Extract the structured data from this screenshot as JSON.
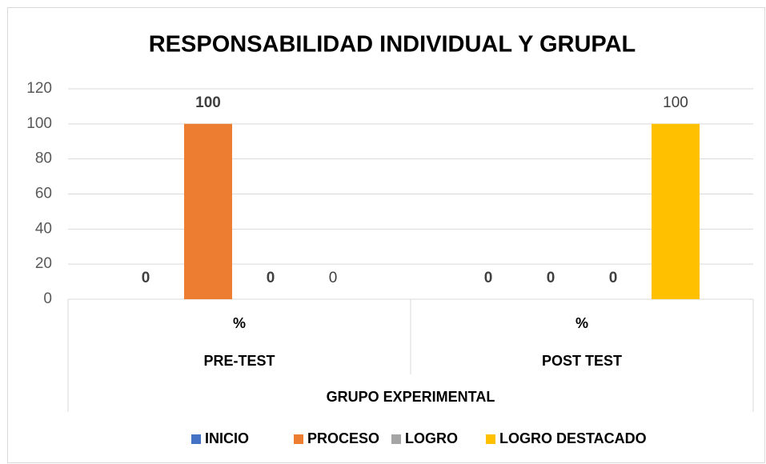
{
  "chart_data": {
    "type": "bar",
    "title": "RESPONSABILIDAD  INDIVIDUAL Y GRUPAL",
    "categories": [
      "%",
      "%"
    ],
    "groups": [
      "PRE-TEST",
      "POST TEST"
    ],
    "outer_group": "GRUPO EXPERIMENTAL",
    "series": [
      {
        "name": "INICIO",
        "color": "#4472c4",
        "values": [
          0,
          0
        ]
      },
      {
        "name": "PROCESO",
        "color": "#ed7d31",
        "values": [
          100,
          0
        ]
      },
      {
        "name": "LOGRO",
        "color": "#a5a5a5",
        "values": [
          0,
          0
        ]
      },
      {
        "name": "LOGRO DESTACADO",
        "color": "#ffc000",
        "values": [
          0,
          100
        ]
      }
    ],
    "ylim": [
      0,
      120
    ],
    "yticks": [
      0,
      20,
      40,
      60,
      80,
      100,
      120
    ],
    "grid": true,
    "legend": "bottom"
  }
}
